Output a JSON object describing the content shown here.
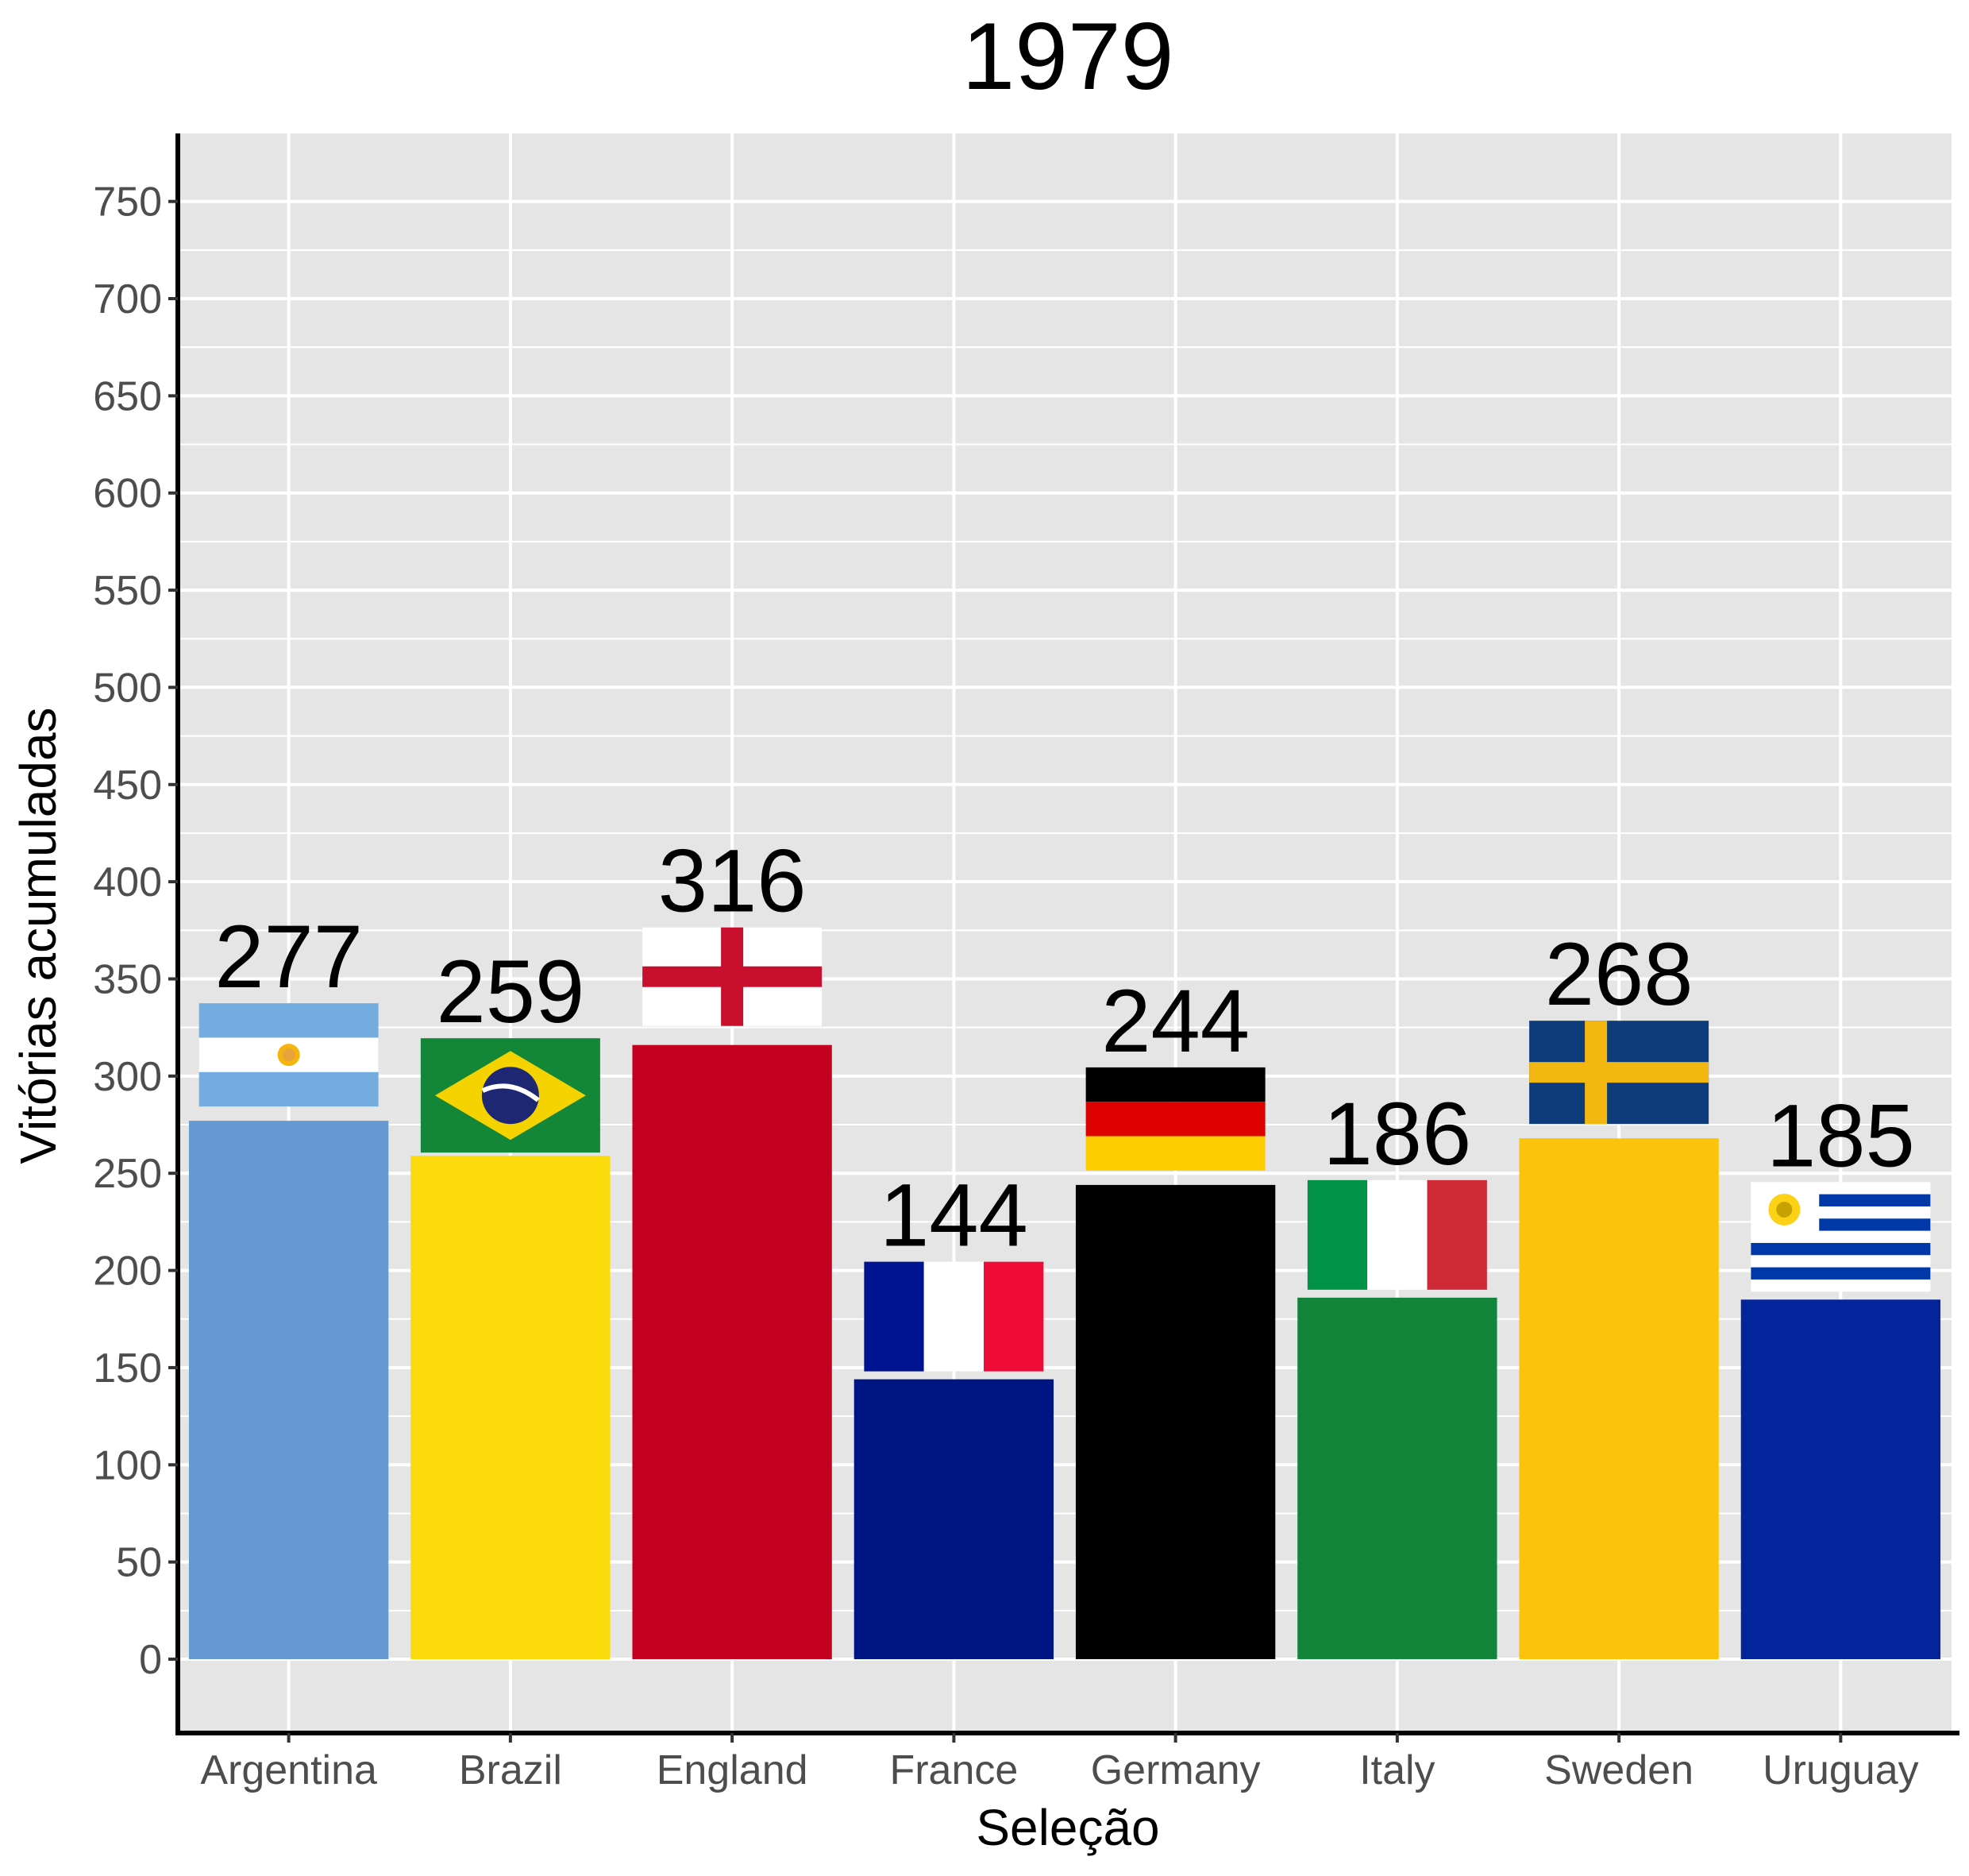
{
  "chart_data": {
    "type": "bar",
    "title": "1979",
    "xlabel": "Seleção",
    "ylabel": "Vitórias acumuladas",
    "categories": [
      "Argentina",
      "Brazil",
      "England",
      "France",
      "Germany",
      "Italy",
      "Sweden",
      "Uruguay"
    ],
    "values": [
      277,
      259,
      316,
      144,
      244,
      186,
      268,
      185
    ],
    "ylim": [
      -38,
      785
    ],
    "yticks": [
      0,
      50,
      100,
      150,
      200,
      250,
      300,
      350,
      400,
      450,
      500,
      550,
      600,
      650,
      700,
      750
    ],
    "grid": true,
    "legend": "none",
    "bar_colors": [
      "#6699d2",
      "#fcdb0d",
      "#c30020",
      "#001584",
      "#000000",
      "#12853a",
      "#fcc30c",
      "#04249b"
    ],
    "flag_icons": [
      "argentina-flag-icon",
      "brazil-flag-icon",
      "england-flag-icon",
      "france-flag-icon",
      "germany-flag-icon",
      "italy-flag-icon",
      "sweden-flag-icon",
      "uruguay-flag-icon"
    ]
  }
}
